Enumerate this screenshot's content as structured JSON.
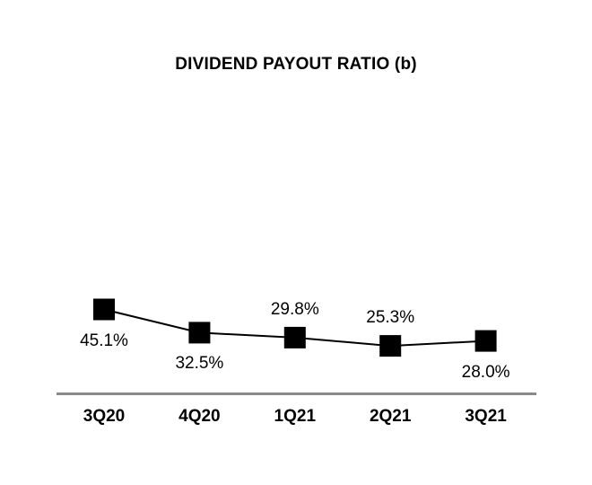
{
  "chart_data": {
    "type": "line",
    "title": "DIVIDEND PAYOUT RATIO (b)",
    "categories": [
      "3Q20",
      "4Q20",
      "1Q21",
      "2Q21",
      "3Q21"
    ],
    "values": [
      45.1,
      32.5,
      29.8,
      25.3,
      28.0
    ],
    "point_labels": [
      "45.1%",
      "32.5%",
      "29.8%",
      "25.3%",
      "28.0%"
    ],
    "point_label_positions": [
      "below",
      "below",
      "above",
      "above",
      "below"
    ],
    "xlabel": "",
    "ylabel": "",
    "unit": "%",
    "ylim": [
      0,
      165
    ],
    "grid": false,
    "legend": "none",
    "marker_style": "square",
    "colors": {
      "series_line": "#000000",
      "marker": "#000000",
      "axis_line": "#8a8a8a",
      "text": "#000000",
      "background": "#ffffff"
    }
  }
}
